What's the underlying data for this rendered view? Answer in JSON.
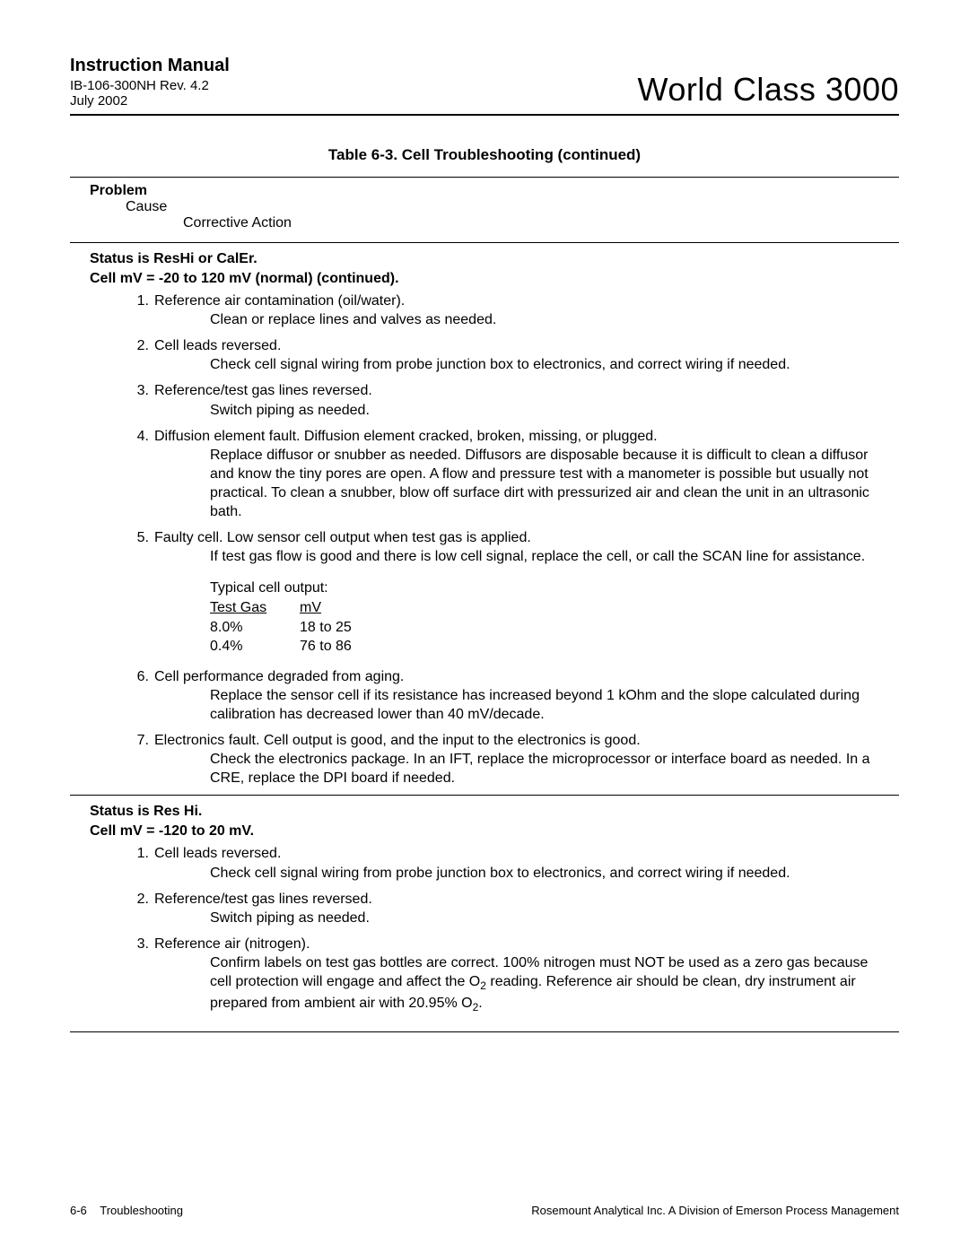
{
  "header": {
    "manual_title": "Instruction Manual",
    "doc_rev": "IB-106-300NH Rev. 4.2",
    "doc_date": "July 2002",
    "product_title": "World Class 3000"
  },
  "table_title": "Table 6-3.  Cell Troubleshooting (continued)",
  "column_headers": {
    "problem": "Problem",
    "cause": "Cause",
    "corrective": "Corrective Action"
  },
  "sections": [
    {
      "status_lines": [
        "Status is ResHi or CalEr.",
        "Cell mV = -20 to 120 mV (normal) (continued)."
      ],
      "items": [
        {
          "num": "1.",
          "cause": "Reference air contamination (oil/water).",
          "action": "Clean or replace lines and valves as needed."
        },
        {
          "num": "2.",
          "cause": "Cell leads reversed.",
          "action": "Check cell signal wiring from probe junction box to electronics, and correct wiring if needed."
        },
        {
          "num": "3.",
          "cause": "Reference/test gas lines reversed.",
          "action": "Switch piping as needed."
        },
        {
          "num": "4.",
          "cause": "Diffusion element fault. Diffusion element cracked, broken, missing, or plugged.",
          "action": "Replace diffusor or snubber as needed. Diffusors are disposable because it is difficult to clean a diffusor and know the tiny pores are open. A flow and pressure test with a manometer is possible but usually not practical. To clean a snubber, blow off surface dirt with pressurized air and clean the unit in an ultrasonic bath."
        },
        {
          "num": "5.",
          "cause": "Faulty cell. Low sensor cell output when test gas is applied.",
          "action": "If test gas flow is good and there is low cell signal, replace the cell, or call the SCAN line for assistance.",
          "cell_output": {
            "title": "Typical cell output:",
            "header": [
              "Test Gas",
              "mV"
            ],
            "rows": [
              [
                "8.0%",
                "18 to 25"
              ],
              [
                "0.4%",
                "76 to 86"
              ]
            ]
          }
        },
        {
          "num": "6.",
          "cause": "Cell performance degraded from aging.",
          "action": "Replace the sensor cell if its resistance has increased beyond 1 kOhm and the slope calculated during calibration has decreased lower than 40 mV/decade."
        },
        {
          "num": "7.",
          "cause": "Electronics fault. Cell output is good, and the input to the electronics is good.",
          "action": "Check the electronics package. In an IFT, replace the microprocessor or interface board as needed. In a CRE, replace the DPI board if needed."
        }
      ]
    },
    {
      "status_lines": [
        "Status is Res Hi.",
        "Cell mV = -120 to 20 mV."
      ],
      "items": [
        {
          "num": "1.",
          "cause": "Cell leads reversed.",
          "action": "Check cell signal wiring from probe junction box to electronics, and correct wiring if needed."
        },
        {
          "num": "2.",
          "cause": "Reference/test gas lines reversed.",
          "action": "Switch piping as needed."
        },
        {
          "num": "3.",
          "cause": "Reference air (nitrogen).",
          "action_html": "Confirm labels on test gas bottles are correct. 100% nitrogen must NOT be used as a zero gas because cell protection will engage and affect the O<sub>2</sub> reading. Reference air should be clean, dry instrument air prepared from ambient air with 20.95% O<sub>2</sub>."
        }
      ]
    }
  ],
  "footer": {
    "left_page": "6-6",
    "left_text": "Troubleshooting",
    "right_text": "Rosemount Analytical Inc.    A Division of Emerson Process Management"
  }
}
